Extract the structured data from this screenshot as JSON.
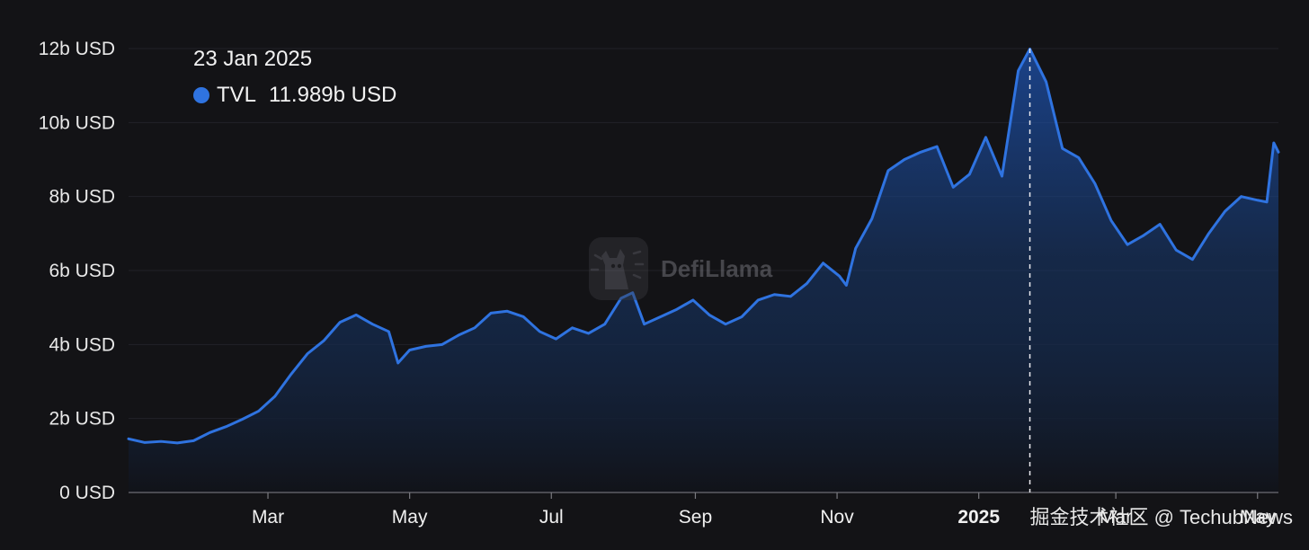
{
  "chart_data": {
    "type": "area",
    "series": [
      {
        "name": "TVL",
        "color": "#2f73e0",
        "points": [
          [
            "2024-01-01",
            1.45
          ],
          [
            "2024-01-08",
            1.35
          ],
          [
            "2024-01-15",
            1.38
          ],
          [
            "2024-01-22",
            1.34
          ],
          [
            "2024-01-29",
            1.4
          ],
          [
            "2024-02-05",
            1.62
          ],
          [
            "2024-02-12",
            1.78
          ],
          [
            "2024-02-19",
            1.98
          ],
          [
            "2024-02-26",
            2.2
          ],
          [
            "2024-03-04",
            2.6
          ],
          [
            "2024-03-11",
            3.2
          ],
          [
            "2024-03-18",
            3.75
          ],
          [
            "2024-03-25",
            4.1
          ],
          [
            "2024-04-01",
            4.6
          ],
          [
            "2024-04-08",
            4.8
          ],
          [
            "2024-04-15",
            4.55
          ],
          [
            "2024-04-22",
            4.35
          ],
          [
            "2024-04-26",
            3.5
          ],
          [
            "2024-05-01",
            3.85
          ],
          [
            "2024-05-08",
            3.95
          ],
          [
            "2024-05-15",
            4.0
          ],
          [
            "2024-05-22",
            4.25
          ],
          [
            "2024-05-29",
            4.45
          ],
          [
            "2024-06-05",
            4.85
          ],
          [
            "2024-06-12",
            4.9
          ],
          [
            "2024-06-19",
            4.75
          ],
          [
            "2024-06-26",
            4.35
          ],
          [
            "2024-07-03",
            4.15
          ],
          [
            "2024-07-10",
            4.45
          ],
          [
            "2024-07-17",
            4.3
          ],
          [
            "2024-07-24",
            4.55
          ],
          [
            "2024-07-31",
            5.25
          ],
          [
            "2024-08-05",
            5.4
          ],
          [
            "2024-08-10",
            4.55
          ],
          [
            "2024-08-17",
            4.75
          ],
          [
            "2024-08-24",
            4.95
          ],
          [
            "2024-08-31",
            5.2
          ],
          [
            "2024-09-07",
            4.8
          ],
          [
            "2024-09-14",
            4.55
          ],
          [
            "2024-09-21",
            4.75
          ],
          [
            "2024-09-28",
            5.2
          ],
          [
            "2024-10-05",
            5.35
          ],
          [
            "2024-10-12",
            5.3
          ],
          [
            "2024-10-19",
            5.65
          ],
          [
            "2024-10-26",
            6.2
          ],
          [
            "2024-11-02",
            5.85
          ],
          [
            "2024-11-05",
            5.6
          ],
          [
            "2024-11-09",
            6.6
          ],
          [
            "2024-11-16",
            7.4
          ],
          [
            "2024-11-23",
            8.7
          ],
          [
            "2024-11-30",
            9.0
          ],
          [
            "2024-12-07",
            9.2
          ],
          [
            "2024-12-14",
            9.35
          ],
          [
            "2024-12-21",
            8.25
          ],
          [
            "2024-12-28",
            8.6
          ],
          [
            "2025-01-04",
            9.6
          ],
          [
            "2025-01-11",
            8.55
          ],
          [
            "2025-01-18",
            11.4
          ],
          [
            "2025-01-23",
            11.989
          ],
          [
            "2025-01-30",
            11.1
          ],
          [
            "2025-02-06",
            9.3
          ],
          [
            "2025-02-13",
            9.05
          ],
          [
            "2025-02-20",
            8.35
          ],
          [
            "2025-02-27",
            7.35
          ],
          [
            "2025-03-06",
            6.7
          ],
          [
            "2025-03-13",
            6.95
          ],
          [
            "2025-03-20",
            7.25
          ],
          [
            "2025-03-27",
            6.55
          ],
          [
            "2025-04-03",
            6.3
          ],
          [
            "2025-04-10",
            7.0
          ],
          [
            "2025-04-17",
            7.6
          ],
          [
            "2025-04-24",
            8.0
          ],
          [
            "2025-05-01",
            7.9
          ],
          [
            "2025-05-05",
            7.85
          ],
          [
            "2025-05-08",
            9.45
          ],
          [
            "2025-05-10",
            9.2
          ]
        ]
      }
    ],
    "ylim": [
      0,
      12
    ],
    "yticks": [
      {
        "value": 0,
        "label": "0 USD"
      },
      {
        "value": 2,
        "label": "2b USD"
      },
      {
        "value": 4,
        "label": "4b USD"
      },
      {
        "value": 6,
        "label": "6b USD"
      },
      {
        "value": 8,
        "label": "8b USD"
      },
      {
        "value": 10,
        "label": "10b USD"
      },
      {
        "value": 12,
        "label": "12b USD"
      }
    ],
    "xlim": [
      "2024-01-01",
      "2025-05-10"
    ],
    "xticks": [
      {
        "date": "2024-03-01",
        "label": "Mar",
        "bold": false
      },
      {
        "date": "2024-05-01",
        "label": "May",
        "bold": false
      },
      {
        "date": "2024-07-01",
        "label": "Jul",
        "bold": false
      },
      {
        "date": "2024-09-01",
        "label": "Sep",
        "bold": false
      },
      {
        "date": "2024-11-01",
        "label": "Nov",
        "bold": false
      },
      {
        "date": "2025-01-01",
        "label": "2025",
        "bold": true
      },
      {
        "date": "2025-03-01",
        "label": "Mar",
        "bold": false
      },
      {
        "date": "2025-05-01",
        "label": "May",
        "bold": false
      }
    ],
    "grid": true,
    "crosshair": {
      "date": "2025-01-23"
    }
  },
  "tooltip": {
    "date": "23 Jan 2025",
    "series_label": "TVL",
    "value": "11.989b USD"
  },
  "watermark": {
    "text": "DefiLlama",
    "icon": "llama-logo-icon"
  },
  "credit": {
    "text": "掘金技术社区 @ TechubNews"
  }
}
